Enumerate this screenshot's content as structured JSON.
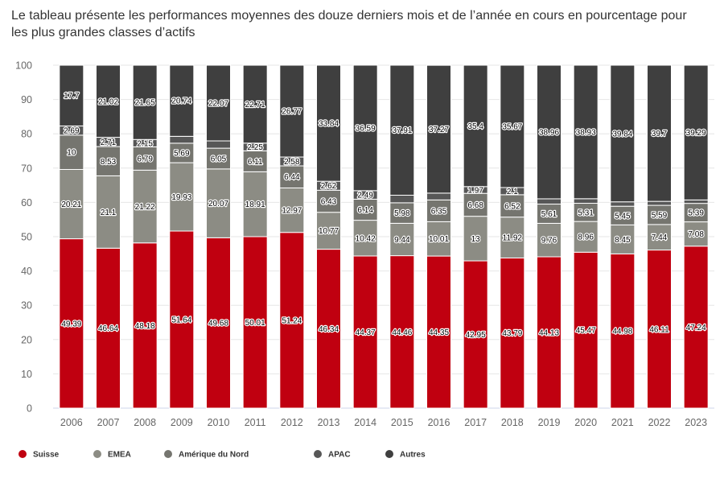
{
  "chart_data": {
    "type": "bar",
    "stacked": true,
    "title": "Le tableau présente les performances moyennes des douze derniers mois et de l’année en cours en pourcentage pour les plus grandes classes d’actifs",
    "categories": [
      "2006",
      "2007",
      "2008",
      "2009",
      "2010",
      "2011",
      "2012",
      "2013",
      "2014",
      "2015",
      "2016",
      "2017",
      "2018",
      "2019",
      "2020",
      "2021",
      "2022",
      "2023"
    ],
    "ylim": [
      0,
      100
    ],
    "yticks": [
      0,
      10,
      20,
      30,
      40,
      50,
      60,
      70,
      80,
      90,
      100
    ],
    "grid": true,
    "legend_position": "bottom-left",
    "series": [
      {
        "name": "Suisse",
        "color": "#c00010",
        "values": [
          49.39,
          46.64,
          48.18,
          51.64,
          49.68,
          50.01,
          51.24,
          46.34,
          44.37,
          44.46,
          44.35,
          42.95,
          43.79,
          44.13,
          45.47,
          44.98,
          46.11,
          47.24
        ]
      },
      {
        "name": "EMEA",
        "color": "#8c8c84",
        "values": [
          20.21,
          21.1,
          21.22,
          19.93,
          20.07,
          18.91,
          12.97,
          10.77,
          10.42,
          9.44,
          10.01,
          13,
          11.92,
          9.76,
          8.96,
          8.45,
          7.44,
          7.08
        ]
      },
      {
        "name": "Amérique du Nord",
        "color": "#75756f",
        "values": [
          10,
          8.53,
          6.79,
          5.69,
          6.05,
          6.11,
          6.44,
          6.43,
          6.14,
          5.98,
          6.35,
          6.68,
          6.52,
          5.61,
          5.31,
          5.45,
          5.59,
          5.39
        ]
      },
      {
        "name": "APAC",
        "color": "#575757",
        "values": [
          2.69,
          2.71,
          2.15,
          2,
          2.13,
          2.25,
          2.58,
          2.62,
          2.49,
          2.21,
          1.99,
          1.97,
          2.1,
          1.54,
          1.33,
          1.28,
          1.16,
          1
        ]
      },
      {
        "name": "Autres",
        "color": "#3f3f3f",
        "values": [
          17.7,
          21.02,
          21.65,
          20.74,
          22.07,
          22.71,
          26.77,
          33.84,
          36.59,
          37.91,
          37.27,
          35.4,
          35.67,
          38.96,
          38.93,
          39.84,
          39.7,
          39.29
        ]
      }
    ],
    "labels_shown": [
      [
        true,
        true,
        true,
        true,
        true,
        true,
        true,
        true,
        true,
        true,
        true,
        true,
        true,
        true,
        true,
        true,
        true,
        true
      ],
      [
        true,
        true,
        true,
        true,
        true,
        true,
        true,
        true,
        true,
        true,
        true,
        true,
        true,
        true,
        true,
        true,
        true,
        true
      ],
      [
        true,
        true,
        true,
        true,
        true,
        true,
        true,
        true,
        true,
        true,
        true,
        true,
        true,
        true,
        true,
        true,
        true,
        true
      ],
      [
        true,
        true,
        true,
        false,
        false,
        true,
        true,
        true,
        true,
        false,
        false,
        true,
        true,
        false,
        false,
        false,
        false,
        false
      ],
      [
        true,
        true,
        true,
        true,
        true,
        true,
        true,
        true,
        true,
        true,
        true,
        true,
        true,
        true,
        true,
        true,
        true,
        true
      ]
    ]
  }
}
